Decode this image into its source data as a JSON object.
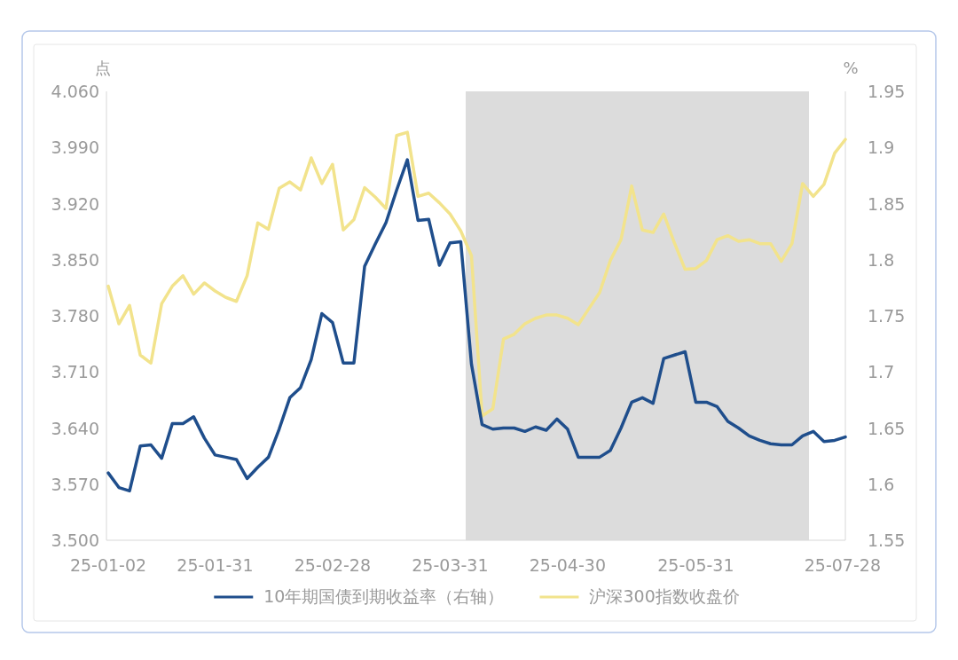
{
  "chart_data": {
    "type": "line",
    "ylabel": "点",
    "y2label": "%",
    "legend": "bottom",
    "categories": [
      "25-01-02",
      null,
      null,
      null,
      null,
      null,
      null,
      null,
      null,
      null,
      "25-01-31",
      null,
      null,
      null,
      null,
      null,
      null,
      null,
      null,
      null,
      null,
      "25-02-28",
      null,
      null,
      null,
      null,
      null,
      null,
      null,
      null,
      null,
      null,
      "25-03-31",
      null,
      null,
      null,
      null,
      null,
      null,
      null,
      null,
      null,
      null,
      "25-04-30",
      null,
      null,
      null,
      null,
      null,
      null,
      null,
      null,
      null,
      null,
      null,
      "25-05-31",
      null,
      null,
      null,
      null,
      null,
      null,
      null,
      null,
      null,
      null,
      null,
      null,
      null,
      "25-07-28"
    ],
    "series": [
      {
        "name": "10年期国债到期收益率（右轴）",
        "color": "#1f4e8c",
        "axis": "y2",
        "values": [
          1.61,
          1.597,
          1.594,
          1.634,
          1.635,
          1.623,
          1.654,
          1.654,
          1.66,
          1.641,
          1.626,
          1.624,
          1.622,
          1.605,
          1.615,
          1.624,
          1.649,
          1.677,
          1.686,
          1.711,
          1.752,
          1.744,
          1.708,
          1.708,
          1.794,
          1.814,
          1.833,
          1.862,
          1.889,
          1.835,
          1.836,
          1.795,
          1.815,
          1.816,
          1.707,
          1.653,
          1.649,
          1.65,
          1.65,
          1.647,
          1.651,
          1.648,
          1.658,
          1.649,
          1.624,
          1.624,
          1.624,
          1.63,
          1.65,
          1.673,
          1.677,
          1.672,
          1.712,
          1.715,
          1.718,
          1.673,
          1.673,
          1.669,
          1.656,
          1.65,
          1.643,
          1.639,
          1.636,
          1.635,
          1.635,
          1.643,
          1.647,
          1.638,
          1.639,
          1.642
        ]
      },
      {
        "name": "沪深300指数收盘价",
        "color": "#f2e38c",
        "axis": "y",
        "values": [
          3.817,
          3.77,
          3.793,
          3.731,
          3.721,
          3.795,
          3.817,
          3.83,
          3.807,
          3.821,
          3.811,
          3.803,
          3.798,
          3.83,
          3.896,
          3.888,
          3.939,
          3.947,
          3.937,
          3.977,
          3.945,
          3.969,
          3.887,
          3.9,
          3.94,
          3.928,
          3.914,
          4.005,
          4.009,
          3.929,
          3.933,
          3.921,
          3.907,
          3.886,
          3.855,
          3.655,
          3.664,
          3.751,
          3.757,
          3.77,
          3.777,
          3.781,
          3.781,
          3.777,
          3.769,
          3.789,
          3.809,
          3.849,
          3.875,
          3.942,
          3.887,
          3.884,
          3.907,
          3.871,
          3.838,
          3.839,
          3.849,
          3.875,
          3.88,
          3.873,
          3.875,
          3.87,
          3.87,
          3.848,
          3.87,
          3.945,
          3.929,
          3.944,
          3.983,
          4.0
        ]
      }
    ],
    "ylim": [
      3.5,
      4.06
    ],
    "yticks": [
      {
        "value": 3.5,
        "label": "3.500"
      },
      {
        "value": 3.57,
        "label": "3.570"
      },
      {
        "value": 3.64,
        "label": "3.640"
      },
      {
        "value": 3.71,
        "label": "3.710"
      },
      {
        "value": 3.78,
        "label": "3.780"
      },
      {
        "value": 3.85,
        "label": "3.850"
      },
      {
        "value": 3.92,
        "label": "3.920"
      },
      {
        "value": 3.99,
        "label": "3.990"
      },
      {
        "value": 4.06,
        "label": "4.060"
      }
    ],
    "y2lim": [
      1.55,
      1.95
    ],
    "y2ticks": [
      1.55,
      1.6,
      1.65,
      1.7,
      1.75,
      1.8,
      1.85,
      1.9,
      1.95
    ]
  }
}
